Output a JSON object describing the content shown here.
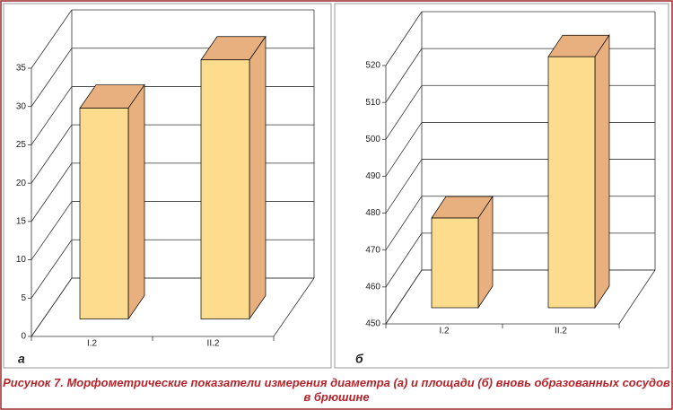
{
  "chart_data": [
    {
      "type": "bar",
      "label": "а",
      "categories": [
        "I.2",
        "II.2"
      ],
      "values": [
        27.5,
        33.8
      ],
      "ylim": [
        0,
        35
      ],
      "yticks": [
        0,
        5,
        10,
        15,
        20,
        25,
        30,
        35
      ],
      "color": "#fddc8e",
      "side_color": "#e8b07e"
    },
    {
      "type": "bar",
      "label": "б",
      "categories": [
        "I.2",
        "II.2"
      ],
      "values": [
        474.3,
        518
      ],
      "ylim": [
        450,
        520
      ],
      "yticks": [
        450,
        460,
        470,
        480,
        490,
        500,
        510,
        520
      ],
      "color": "#fddc8e",
      "side_color": "#e8b07e"
    }
  ],
  "caption": "Рисунок 7. Морфометрические показатели измерения диаметра (а) и площади (б) вновь образованных сосудов в брюшине"
}
